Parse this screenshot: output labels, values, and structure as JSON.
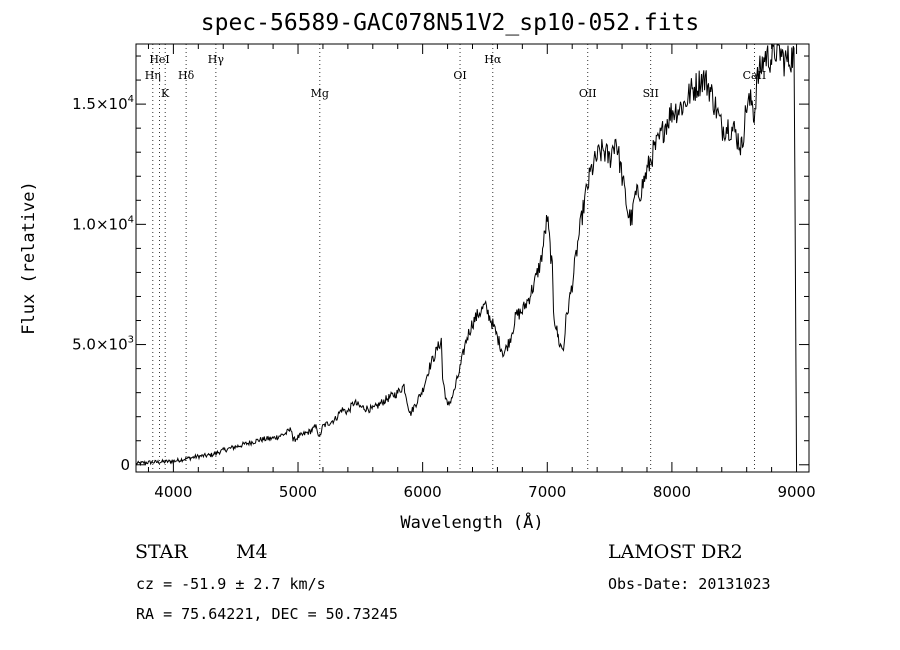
{
  "title": "spec-56589-GAC078N51V2_sp10-052.fits",
  "chart_data": {
    "type": "line",
    "xlabel": "Wavelength (Å)",
    "ylabel": "Flux (relative)",
    "xlim": [
      3700,
      9100
    ],
    "ylim": [
      -300,
      17500
    ],
    "xticks": [
      {
        "value": 4000,
        "label": "4000"
      },
      {
        "value": 5000,
        "label": "5000"
      },
      {
        "value": 6000,
        "label": "6000"
      },
      {
        "value": 7000,
        "label": "7000"
      },
      {
        "value": 8000,
        "label": "8000"
      },
      {
        "value": 9000,
        "label": "9000"
      }
    ],
    "yticks": [
      {
        "value": 0,
        "label": "0"
      },
      {
        "value": 5000,
        "label": "5.0×10",
        "exp": "3"
      },
      {
        "value": 10000,
        "label": "1.0×10",
        "exp": "4"
      },
      {
        "value": 15000,
        "label": "1.5×10",
        "exp": "4"
      }
    ],
    "lines": [
      {
        "label": "HeI",
        "wavelength": 3889,
        "tier": 0
      },
      {
        "label": "Hη",
        "wavelength": 3835,
        "tier": 1
      },
      {
        "label": "K",
        "wavelength": 3934,
        "tier": 2
      },
      {
        "label": "Hδ",
        "wavelength": 4102,
        "tier": 1
      },
      {
        "label": "Hγ",
        "wavelength": 4341,
        "tier": 0
      },
      {
        "label": "Mg",
        "wavelength": 5175,
        "tier": 2
      },
      {
        "label": "OI",
        "wavelength": 6300,
        "tier": 1
      },
      {
        "label": "Hα",
        "wavelength": 6563,
        "tier": 0
      },
      {
        "label": "OII",
        "wavelength": 7325,
        "tier": 2
      },
      {
        "label": "SII",
        "wavelength": 7830,
        "tier": 2
      },
      {
        "label": "CaII",
        "wavelength": 8662,
        "tier": 1
      }
    ],
    "series": [
      {
        "x": [
          3700,
          3800,
          3900,
          4000,
          4100,
          4200,
          4300,
          4400,
          4500,
          4600,
          4700,
          4800,
          4900,
          4950,
          4960,
          5000,
          5100,
          5150,
          5170,
          5200,
          5300,
          5350,
          5400,
          5450,
          5500,
          5600,
          5700,
          5800,
          5850,
          5900,
          6000,
          6050,
          6100,
          6150,
          6160,
          6200,
          6250,
          6300,
          6350,
          6400,
          6450,
          6500,
          6550,
          6600,
          6650,
          6700,
          6750,
          6800,
          6850,
          6900,
          6950,
          7000,
          7040,
          7050,
          7060,
          7100,
          7130,
          7150,
          7200,
          7250,
          7300,
          7350,
          7400,
          7450,
          7500,
          7550,
          7600,
          7650,
          7680,
          7700,
          7750,
          7800,
          7850,
          7900,
          7950,
          8000,
          8050,
          8100,
          8150,
          8200,
          8250,
          8300,
          8350,
          8400,
          8450,
          8500,
          8550,
          8560,
          8600,
          8650,
          8660,
          8680,
          8700,
          8750,
          8800,
          8850,
          8900,
          8950,
          8980,
          9000
        ],
        "y": [
          50,
          100,
          120,
          150,
          250,
          350,
          400,
          600,
          750,
          900,
          1050,
          1100,
          1300,
          1500,
          1000,
          1150,
          1400,
          1600,
          1100,
          1600,
          1900,
          2300,
          2200,
          2600,
          2400,
          2300,
          2700,
          3000,
          3300,
          2100,
          3100,
          4000,
          4600,
          5200,
          3600,
          2400,
          3000,
          4000,
          5200,
          5900,
          6300,
          6600,
          6000,
          5300,
          4600,
          5200,
          6200,
          6400,
          6900,
          7600,
          8500,
          10300,
          8100,
          6500,
          6000,
          5000,
          4800,
          6000,
          7500,
          9400,
          11000,
          12200,
          12800,
          13100,
          12700,
          13600,
          12000,
          10400,
          10200,
          11100,
          11400,
          12200,
          13000,
          13500,
          14200,
          14700,
          14800,
          15000,
          15500,
          15800,
          16100,
          15700,
          14900,
          14000,
          14100,
          13900,
          13300,
          13200,
          15000,
          15100,
          14300,
          15900,
          16300,
          17000,
          16900,
          17400,
          16800,
          16900,
          17100,
          100
        ]
      }
    ]
  },
  "info": {
    "object_class": "STAR",
    "subclass": "M4",
    "survey": "LAMOST DR2",
    "cz": "cz = -51.9 ± 2.7 km/s",
    "obs_date": "Obs-Date: 20131023",
    "radec": "RA =  75.64221, DEC =  50.73245"
  },
  "colors": {
    "line": "#000000",
    "background": "#ffffff"
  }
}
